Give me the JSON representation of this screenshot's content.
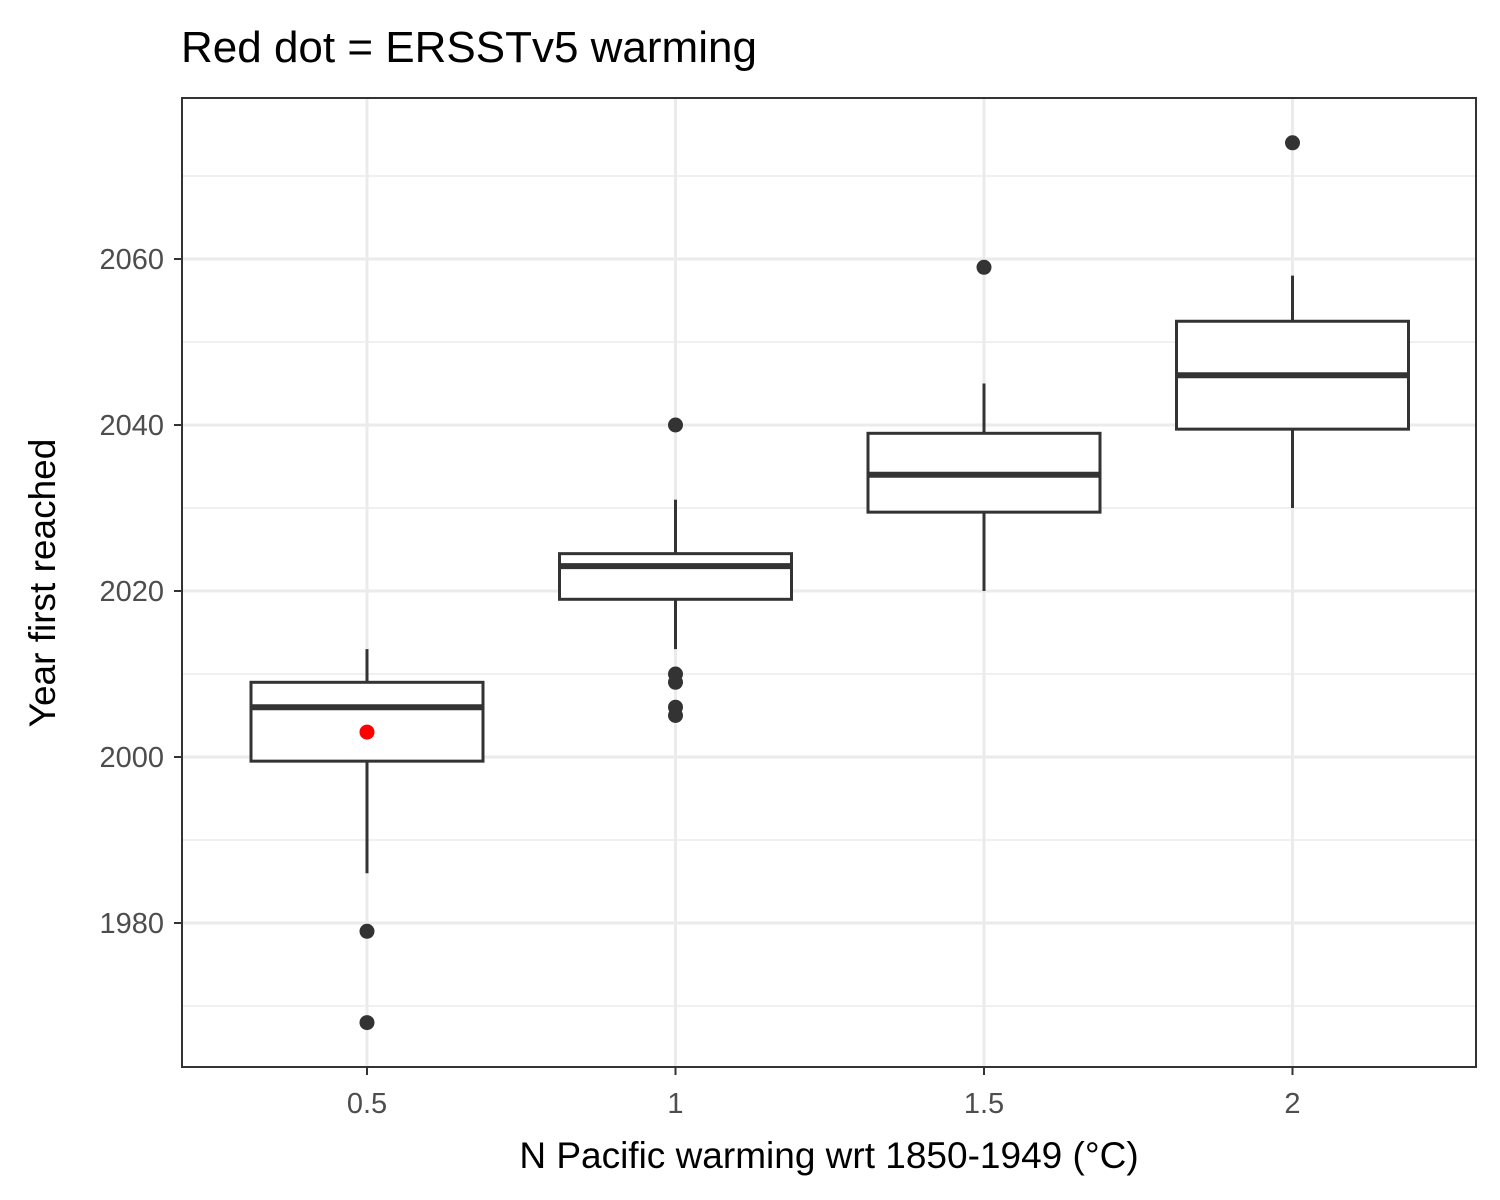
{
  "chart_data": {
    "type": "box",
    "title": "Red dot = ERSSTv5 warming",
    "xlabel": "N Pacific warming wrt 1850-1949 (°C)",
    "ylabel": "Year first reached",
    "categories": [
      "0.5",
      "1",
      "1.5",
      "2"
    ],
    "ylim": [
      1962,
      2074
    ],
    "y_major_ticks": [
      1980,
      2000,
      2020,
      2040,
      2060
    ],
    "y_minor_ticks": [
      1970,
      1990,
      2010,
      2030,
      2050,
      2070
    ],
    "grid": true,
    "boxes": [
      {
        "category": "0.5",
        "whisker_low": 1986,
        "q1": 1999.5,
        "median": 2006,
        "q3": 2009,
        "whisker_high": 2013,
        "outliers": [
          1979,
          1968
        ]
      },
      {
        "category": "1",
        "whisker_low": 2013,
        "q1": 2019,
        "median": 2023,
        "q3": 2024.5,
        "whisker_high": 2031,
        "outliers": [
          2040,
          2010,
          2009,
          2006,
          2005
        ]
      },
      {
        "category": "1.5",
        "whisker_low": 2020,
        "q1": 2029.5,
        "median": 2034,
        "q3": 2039,
        "whisker_high": 2045,
        "outliers": [
          2059
        ]
      },
      {
        "category": "2",
        "whisker_low": 2030,
        "q1": 2039.5,
        "median": 2046,
        "q3": 2052.5,
        "whisker_high": 2058,
        "outliers": [
          2074
        ]
      }
    ],
    "highlight_points": [
      {
        "category": "0.5",
        "value": 2003,
        "color": "#ff0000"
      }
    ],
    "colors": {
      "box_stroke": "#333333",
      "outlier": "#333333",
      "highlight": "#ff0000",
      "grid": "#ebebeb"
    }
  }
}
